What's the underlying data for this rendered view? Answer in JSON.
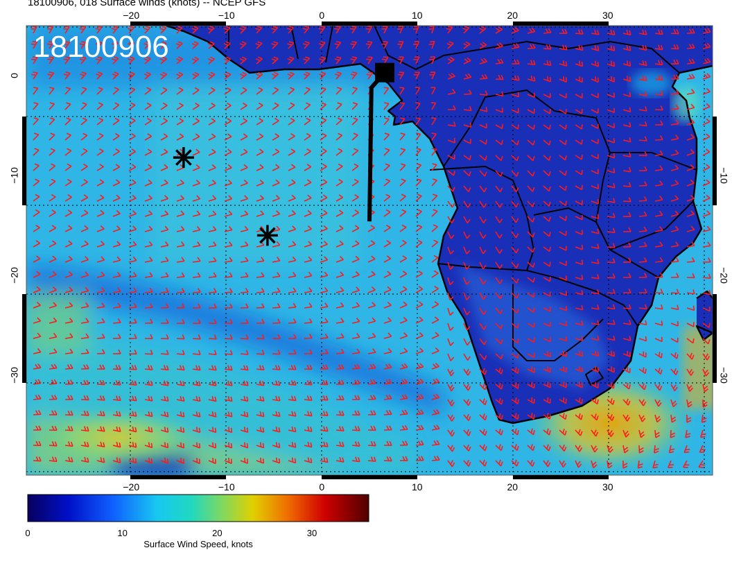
{
  "title": "18100906, 018 Surface winds (knots) -- NCEP GFS",
  "overlay_label": "18100906",
  "map": {
    "lon_range": [
      -31,
      41
    ],
    "lat_range": [
      -40,
      5
    ],
    "lon_ticks_top": [
      {
        "v": -20,
        "t": "−20"
      },
      {
        "v": -10,
        "t": "−10"
      },
      {
        "v": 0,
        "t": "0"
      },
      {
        "v": 10,
        "t": "10"
      },
      {
        "v": 20,
        "t": "20"
      },
      {
        "v": 30,
        "t": "30"
      }
    ],
    "lon_ticks_bottom": [
      {
        "v": -20,
        "t": "−20"
      },
      {
        "v": -10,
        "t": "−10"
      },
      {
        "v": 0,
        "t": "0"
      },
      {
        "v": 10,
        "t": "10"
      },
      {
        "v": 20,
        "t": "20"
      },
      {
        "v": 30,
        "t": "30"
      }
    ],
    "lat_ticks_left": [
      {
        "v": 0,
        "t": "0"
      },
      {
        "v": -10,
        "t": "−10"
      },
      {
        "v": -20,
        "t": "−20"
      },
      {
        "v": -30,
        "t": "−30"
      }
    ],
    "lat_ticks_right": [
      {
        "v": -10,
        "t": "−10"
      },
      {
        "v": -20,
        "t": "−20"
      },
      {
        "v": -30,
        "t": "−30"
      }
    ],
    "markers": [
      {
        "type": "asterisk",
        "lon": -14.5,
        "lat": -8.2
      },
      {
        "type": "asterisk",
        "lon": -5.7,
        "lat": -16.0
      },
      {
        "type": "square",
        "lon": 6.6,
        "lat": 0.3
      }
    ],
    "track": [
      [
        6.6,
        0.3
      ],
      [
        5.2,
        -1.2
      ],
      [
        5.0,
        -14.6
      ]
    ]
  },
  "colorbar": {
    "label": "Surface Wind Speed, knots",
    "ticks": [
      {
        "v": 0,
        "t": "0"
      },
      {
        "v": 10,
        "t": "10"
      },
      {
        "v": 20,
        "t": "20"
      },
      {
        "v": 30,
        "t": "30"
      }
    ],
    "range": [
      0,
      36
    ]
  },
  "colors": {
    "barb": "#ff1a1a",
    "land_line": "#000000",
    "ocean_base": "#2fb6e6"
  }
}
